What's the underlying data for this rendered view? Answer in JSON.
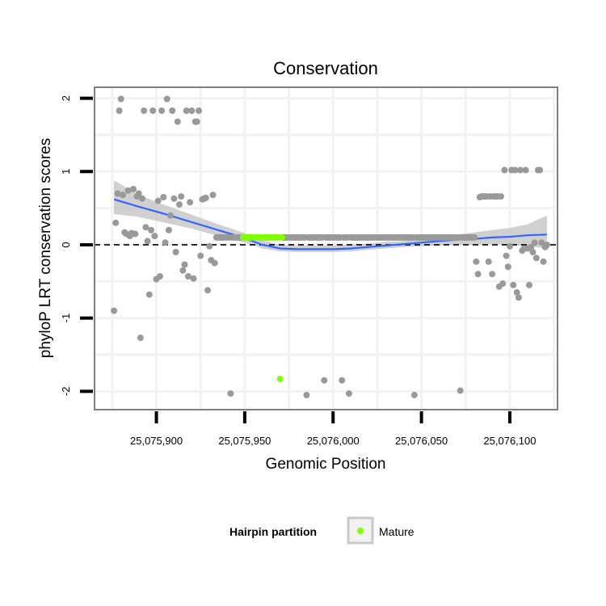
{
  "chart_data": {
    "type": "scatter",
    "title": "Conservation",
    "xlabel": "Genomic Position",
    "ylabel": "phyloP LRT conservation scores",
    "xlim": [
      25075865,
      25076127
    ],
    "ylim": [
      -2.25,
      2.15
    ],
    "x_ticks": [
      {
        "value": 25075900,
        "label": "25,075,900"
      },
      {
        "value": 25075950,
        "label": "25,075,950"
      },
      {
        "value": 25076000,
        "label": "25,076,000"
      },
      {
        "value": 25076050,
        "label": "25,076,050"
      },
      {
        "value": 25076100,
        "label": "25,076,100"
      }
    ],
    "y_ticks": [
      {
        "value": 2,
        "label": "2"
      },
      {
        "value": 1,
        "label": "1"
      },
      {
        "value": 0,
        "label": "0"
      },
      {
        "value": -1,
        "label": "-1"
      },
      {
        "value": -2,
        "label": "-2"
      }
    ],
    "reference_line": {
      "y": 0,
      "style": "dashed"
    },
    "legend": {
      "title": "Hairpin partition",
      "entries": [
        {
          "label": "Mature",
          "color": "#7fff00"
        }
      ],
      "position": "bottom"
    },
    "colors": {
      "other": "#999999",
      "mature": "#7fff00",
      "smooth": "#3366ff",
      "band": "#c8c8c8",
      "panel_border": "#7f7f7f",
      "grid": "#f2f2f2"
    },
    "series": [
      {
        "name": "Other",
        "points": [
          [
            25075876,
            -0.9
          ],
          [
            25075877,
            0.3
          ],
          [
            25075878,
            0.7
          ],
          [
            25075879,
            1.83
          ],
          [
            25075880,
            1.99
          ],
          [
            25075881,
            0.68
          ],
          [
            25075882,
            0.17
          ],
          [
            25075883,
            0.15
          ],
          [
            25075884,
            0.74
          ],
          [
            25075885,
            0.12
          ],
          [
            25075886,
            0.16
          ],
          [
            25075887,
            0.76
          ],
          [
            25075888,
            0.15
          ],
          [
            25075889,
            0.66
          ],
          [
            25075890,
            0.7
          ],
          [
            25075891,
            -1.27
          ],
          [
            25075892,
            0.63
          ],
          [
            25075893,
            1.83
          ],
          [
            25075894,
            0.24
          ],
          [
            25075895,
            0.05
          ],
          [
            25075896,
            -0.68
          ],
          [
            25075897,
            0.2
          ],
          [
            25075898,
            1.83
          ],
          [
            25075899,
            0.12
          ],
          [
            25075900,
            -0.47
          ],
          [
            25075901,
            0.6
          ],
          [
            25075902,
            -0.43
          ],
          [
            25075903,
            1.83
          ],
          [
            25075904,
            0.65
          ],
          [
            25075905,
            0.03
          ],
          [
            25075906,
            1.99
          ],
          [
            25075907,
            0.2
          ],
          [
            25075908,
            0.4
          ],
          [
            25075909,
            1.83
          ],
          [
            25075910,
            0.63
          ],
          [
            25075911,
            -0.1
          ],
          [
            25075912,
            1.68
          ],
          [
            25075913,
            0.55
          ],
          [
            25075914,
            0.66
          ],
          [
            25075915,
            -0.35
          ],
          [
            25075916,
            -0.27
          ],
          [
            25075917,
            1.83
          ],
          [
            25075918,
            -0.43
          ],
          [
            25075919,
            0.58
          ],
          [
            25075920,
            1.83
          ],
          [
            25075921,
            -0.46
          ],
          [
            25075922,
            1.68
          ],
          [
            25075923,
            1.68
          ],
          [
            25075924,
            1.83
          ],
          [
            25075925,
            -0.15
          ],
          [
            25075926,
            0.62
          ],
          [
            25075927,
            0.63
          ],
          [
            25075928,
            0.64
          ],
          [
            25075929,
            -0.62
          ],
          [
            25075930,
            -0.02
          ],
          [
            25075931,
            -0.21
          ],
          [
            25075932,
            0.68
          ],
          [
            25075933,
            -0.25
          ],
          [
            25075934,
            0.1
          ],
          [
            25075935,
            0.1
          ],
          [
            25075936,
            0.1
          ],
          [
            25075937,
            0.1
          ],
          [
            25075938,
            0.1
          ],
          [
            25075939,
            0.1
          ],
          [
            25075940,
            0.1
          ],
          [
            25075941,
            0.1
          ],
          [
            25075942,
            -2.03
          ],
          [
            25075943,
            0.1
          ],
          [
            25075944,
            0.1
          ],
          [
            25075945,
            0.1
          ],
          [
            25075946,
            0.1
          ],
          [
            25075947,
            0.1
          ],
          [
            25075948,
            0.1
          ],
          [
            25075972,
            0.1
          ],
          [
            25075973,
            0.1
          ],
          [
            25075974,
            0.1
          ],
          [
            25075975,
            0.1
          ],
          [
            25075976,
            0.1
          ],
          [
            25075977,
            0.1
          ],
          [
            25075978,
            0.1
          ],
          [
            25075979,
            0.1
          ],
          [
            25075980,
            0.1
          ],
          [
            25075981,
            0.1
          ],
          [
            25075982,
            0.1
          ],
          [
            25075983,
            0.1
          ],
          [
            25075984,
            0.1
          ],
          [
            25075985,
            -2.05
          ],
          [
            25075986,
            0.1
          ],
          [
            25075987,
            0.1
          ],
          [
            25075988,
            0.1
          ],
          [
            25075989,
            0.1
          ],
          [
            25075990,
            0.1
          ],
          [
            25075991,
            0.1
          ],
          [
            25075992,
            0.1
          ],
          [
            25075993,
            0.1
          ],
          [
            25075994,
            0.1
          ],
          [
            25075995,
            -1.85
          ],
          [
            25075996,
            0.1
          ],
          [
            25075997,
            0.1
          ],
          [
            25075998,
            0.1
          ],
          [
            25075999,
            0.1
          ],
          [
            25076000,
            0.1
          ],
          [
            25076001,
            0.1
          ],
          [
            25076002,
            0.1
          ],
          [
            25076003,
            0.1
          ],
          [
            25076004,
            0.1
          ],
          [
            25076005,
            -1.85
          ],
          [
            25076006,
            0.1
          ],
          [
            25076007,
            0.1
          ],
          [
            25076008,
            0.1
          ],
          [
            25076009,
            -2.03
          ],
          [
            25076010,
            0.1
          ],
          [
            25076011,
            0.1
          ],
          [
            25076012,
            0.1
          ],
          [
            25076013,
            0.1
          ],
          [
            25076014,
            0.1
          ],
          [
            25076015,
            0.1
          ],
          [
            25076016,
            0.1
          ],
          [
            25076017,
            0.1
          ],
          [
            25076018,
            0.1
          ],
          [
            25076019,
            0.1
          ],
          [
            25076020,
            0.1
          ],
          [
            25076021,
            0.1
          ],
          [
            25076022,
            0.1
          ],
          [
            25076023,
            0.1
          ],
          [
            25076024,
            0.1
          ],
          [
            25076025,
            0.1
          ],
          [
            25076026,
            0.1
          ],
          [
            25076027,
            0.1
          ],
          [
            25076028,
            0.1
          ],
          [
            25076029,
            0.1
          ],
          [
            25076030,
            0.1
          ],
          [
            25076031,
            0.1
          ],
          [
            25076032,
            0.1
          ],
          [
            25076033,
            0.1
          ],
          [
            25076034,
            0.1
          ],
          [
            25076035,
            0.1
          ],
          [
            25076036,
            0.1
          ],
          [
            25076037,
            0.1
          ],
          [
            25076038,
            0.1
          ],
          [
            25076039,
            0.1
          ],
          [
            25076040,
            0.1
          ],
          [
            25076041,
            0.1
          ],
          [
            25076042,
            0.1
          ],
          [
            25076043,
            0.1
          ],
          [
            25076044,
            0.1
          ],
          [
            25076045,
            0.1
          ],
          [
            25076046,
            -2.05
          ],
          [
            25076047,
            0.1
          ],
          [
            25076048,
            0.1
          ],
          [
            25076049,
            0.1
          ],
          [
            25076050,
            0.1
          ],
          [
            25076051,
            0.1
          ],
          [
            25076052,
            0.1
          ],
          [
            25076053,
            0.1
          ],
          [
            25076054,
            0.1
          ],
          [
            25076055,
            0.1
          ],
          [
            25076056,
            0.1
          ],
          [
            25076057,
            0.1
          ],
          [
            25076058,
            0.1
          ],
          [
            25076059,
            0.1
          ],
          [
            25076060,
            0.1
          ],
          [
            25076061,
            0.1
          ],
          [
            25076062,
            0.1
          ],
          [
            25076063,
            0.1
          ],
          [
            25076064,
            0.1
          ],
          [
            25076065,
            0.1
          ],
          [
            25076066,
            0.1
          ],
          [
            25076067,
            0.1
          ],
          [
            25076068,
            0.1
          ],
          [
            25076069,
            0.1
          ],
          [
            25076070,
            0.1
          ],
          [
            25076071,
            0.1
          ],
          [
            25076072,
            -1.99
          ],
          [
            25076073,
            0.1
          ],
          [
            25076074,
            0.1
          ],
          [
            25076075,
            0.1
          ],
          [
            25076076,
            0.1
          ],
          [
            25076077,
            0.1
          ],
          [
            25076078,
            0.1
          ],
          [
            25076079,
            0.1
          ],
          [
            25076080,
            0.1
          ],
          [
            25076081,
            -0.23
          ],
          [
            25076082,
            -0.4
          ],
          [
            25076083,
            0.65
          ],
          [
            25076084,
            0.66
          ],
          [
            25076085,
            0.66
          ],
          [
            25076086,
            0.66
          ],
          [
            25076087,
            0.66
          ],
          [
            25076088,
            -0.23
          ],
          [
            25076089,
            0.66
          ],
          [
            25076090,
            -0.4
          ],
          [
            25076091,
            0.66
          ],
          [
            25076092,
            0.66
          ],
          [
            25076093,
            0.66
          ],
          [
            25076094,
            -0.57
          ],
          [
            25076095,
            0.66
          ],
          [
            25076096,
            -0.53
          ],
          [
            25076097,
            1.02
          ],
          [
            25076098,
            -0.15
          ],
          [
            25076099,
            -0.3
          ],
          [
            25076100,
            -0.02
          ],
          [
            25076101,
            1.02
          ],
          [
            25076102,
            -0.55
          ],
          [
            25076103,
            1.02
          ],
          [
            25076104,
            -0.65
          ],
          [
            25076105,
            -0.72
          ],
          [
            25076106,
            1.02
          ],
          [
            25076107,
            -0.08
          ],
          [
            25076108,
            -0.05
          ],
          [
            25076109,
            1.02
          ],
          [
            25076110,
            -0.05
          ],
          [
            25076111,
            -0.55
          ],
          [
            25076112,
            -0.03
          ],
          [
            25076113,
            -0.1
          ],
          [
            25076114,
            0.03
          ],
          [
            25076115,
            -0.18
          ],
          [
            25076116,
            1.02
          ],
          [
            25076117,
            1.02
          ],
          [
            25076118,
            0.03
          ],
          [
            25076119,
            -0.23
          ],
          [
            25076120,
            -0.03
          ],
          [
            25076121,
            0.0
          ]
        ]
      },
      {
        "name": "Mature",
        "points": [
          [
            25075949,
            0.1
          ],
          [
            25075950,
            0.1
          ],
          [
            25075951,
            0.1
          ],
          [
            25075952,
            0.1
          ],
          [
            25075953,
            0.1
          ],
          [
            25075954,
            0.1
          ],
          [
            25075955,
            0.1
          ],
          [
            25075956,
            0.1
          ],
          [
            25075957,
            0.1
          ],
          [
            25075958,
            0.1
          ],
          [
            25075959,
            0.1
          ],
          [
            25075960,
            0.1
          ],
          [
            25075961,
            0.1
          ],
          [
            25075962,
            0.1
          ],
          [
            25075963,
            0.1
          ],
          [
            25075964,
            0.1
          ],
          [
            25075965,
            0.1
          ],
          [
            25075966,
            0.1
          ],
          [
            25075967,
            0.1
          ],
          [
            25075968,
            0.1
          ],
          [
            25075969,
            0.1
          ],
          [
            25075970,
            -1.83
          ],
          [
            25075971,
            0.1
          ]
        ]
      }
    ],
    "smooth": {
      "x": [
        25075876,
        25075890,
        25075905,
        25075920,
        25075935,
        25075950,
        25075960,
        25075970,
        25075980,
        25075990,
        25076000,
        25076010,
        25076020,
        25076030,
        25076040,
        25076050,
        25076060,
        25076070,
        25076080,
        25076090,
        25076100,
        25076110,
        25076121
      ],
      "y": [
        0.62,
        0.52,
        0.42,
        0.31,
        0.2,
        0.09,
        0.0,
        -0.05,
        -0.06,
        -0.06,
        -0.06,
        -0.05,
        -0.03,
        -0.01,
        0.01,
        0.03,
        0.05,
        0.07,
        0.08,
        0.1,
        0.11,
        0.13,
        0.14
      ],
      "lo": [
        0.42,
        0.38,
        0.3,
        0.22,
        0.12,
        0.03,
        -0.05,
        -0.09,
        -0.1,
        -0.1,
        -0.1,
        -0.09,
        -0.07,
        -0.05,
        -0.03,
        -0.02,
        -0.01,
        0.0,
        0.0,
        0.01,
        0.0,
        -0.02,
        -0.05
      ],
      "hi": [
        0.88,
        0.68,
        0.54,
        0.41,
        0.28,
        0.16,
        0.06,
        0.0,
        -0.01,
        -0.01,
        -0.01,
        0.0,
        0.02,
        0.04,
        0.05,
        0.08,
        0.1,
        0.14,
        0.17,
        0.2,
        0.23,
        0.28,
        0.4
      ]
    }
  }
}
